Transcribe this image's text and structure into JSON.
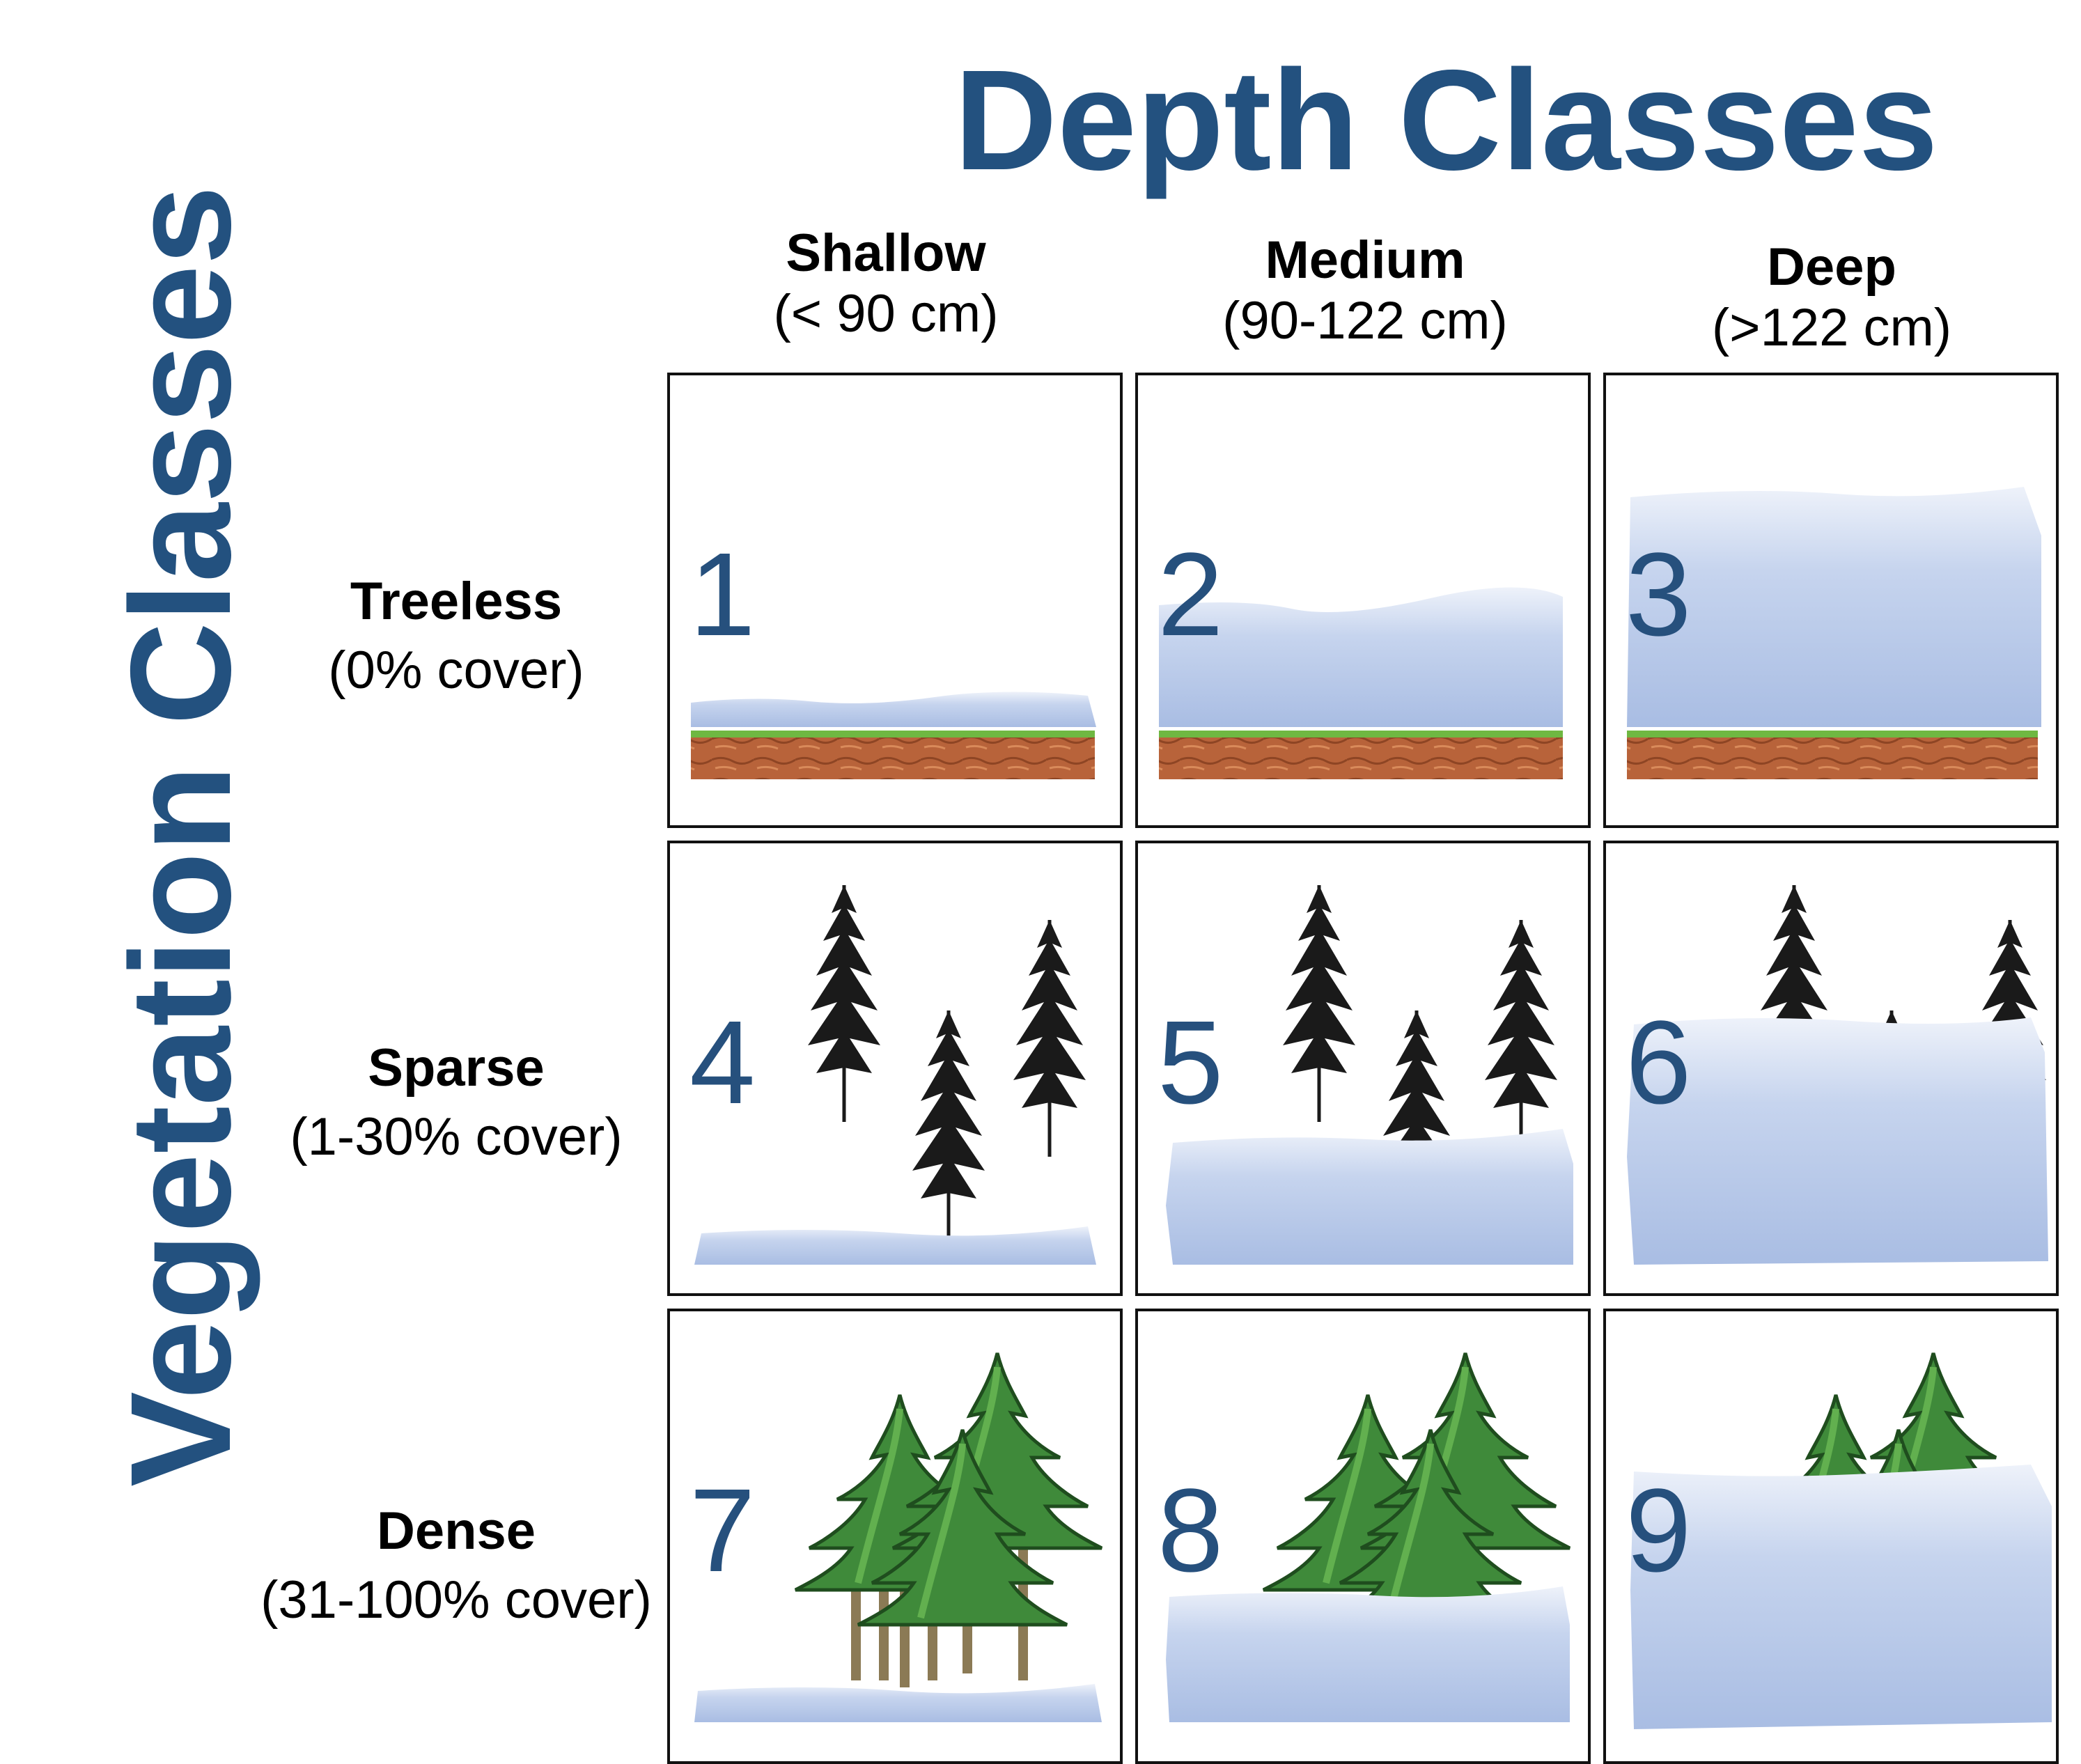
{
  "title": "Depth Classes",
  "vertical_title": "Vegetation Classes",
  "columns": [
    {
      "name": "Shallow",
      "range": "(< 90 cm)"
    },
    {
      "name": "Medium",
      "range": "(90-122 cm)"
    },
    {
      "name": "Deep",
      "range": "(>122 cm)"
    }
  ],
  "rows": [
    {
      "name": "Treeless",
      "range": "(0% cover)"
    },
    {
      "name": "Sparse",
      "range": "(1-30% cover)"
    },
    {
      "name": "Dense",
      "range": "(31-100% cover)"
    }
  ],
  "cells": [
    {
      "number": "1",
      "depth": "shallow",
      "vegetation": "treeless"
    },
    {
      "number": "2",
      "depth": "medium",
      "vegetation": "treeless"
    },
    {
      "number": "3",
      "depth": "deep",
      "vegetation": "treeless"
    },
    {
      "number": "4",
      "depth": "shallow",
      "vegetation": "sparse"
    },
    {
      "number": "5",
      "depth": "medium",
      "vegetation": "sparse"
    },
    {
      "number": "6",
      "depth": "deep",
      "vegetation": "sparse"
    },
    {
      "number": "7",
      "depth": "shallow",
      "vegetation": "dense"
    },
    {
      "number": "8",
      "depth": "medium",
      "vegetation": "dense"
    },
    {
      "number": "9",
      "depth": "deep",
      "vegetation": "dense"
    }
  ],
  "colors": {
    "title": "#23517f",
    "number": "#26507d",
    "snow_top": "#eef2fa",
    "snow_bottom": "#a9bde3",
    "soil": "#b8633a",
    "grass": "#6fb842",
    "conifer": "#3f8a3a",
    "sparse_tree": "#1a1a1a"
  }
}
